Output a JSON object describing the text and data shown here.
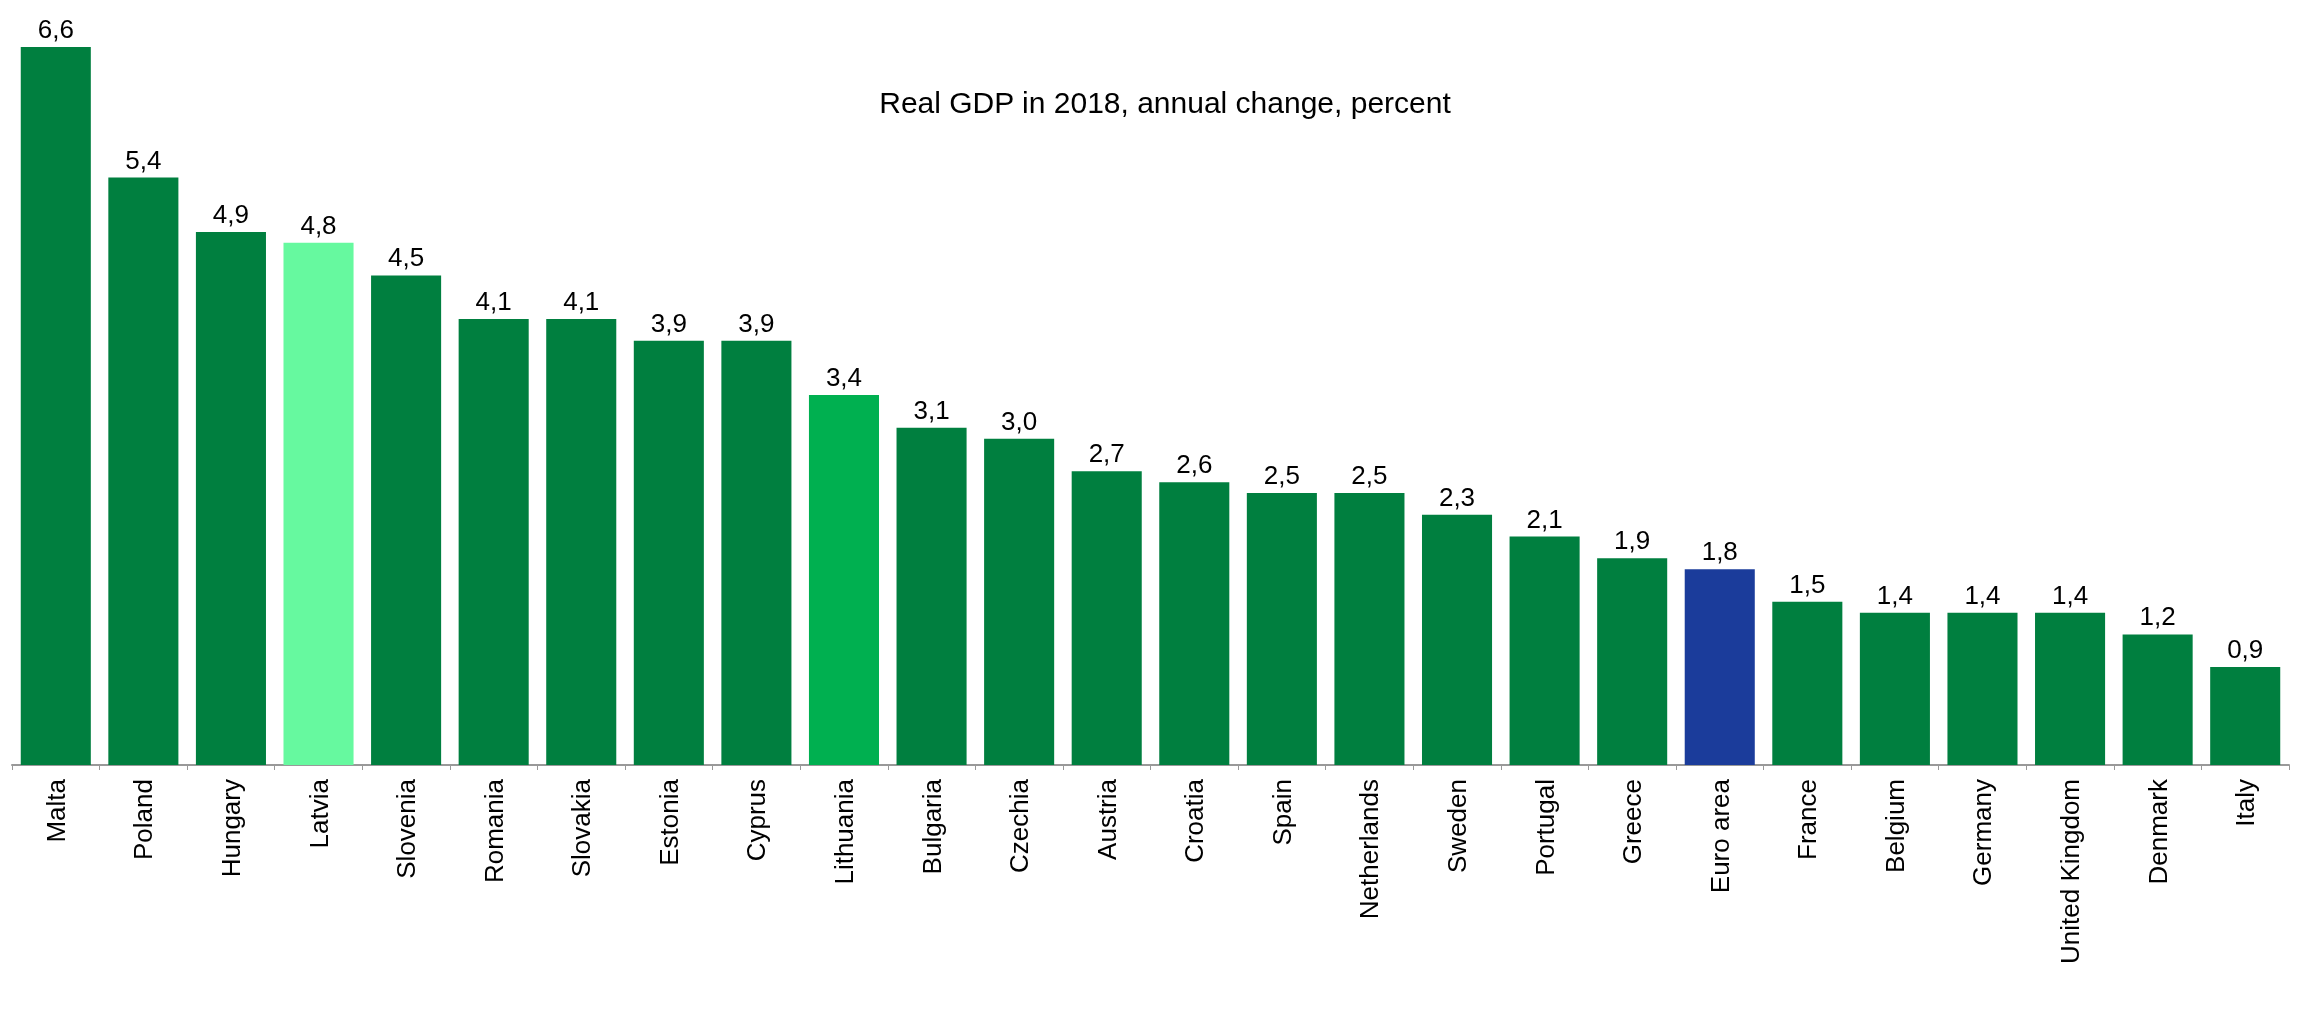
{
  "chart_data": {
    "type": "bar",
    "title": "Real GDP in 2018, annual change, percent",
    "categories": [
      "Malta",
      "Poland",
      "Hungary",
      "Latvia",
      "Slovenia",
      "Romania",
      "Slovakia",
      "Estonia",
      "Cyprus",
      "Lithuania",
      "Bulgaria",
      "Czechia",
      "Austria",
      "Croatia",
      "Spain",
      "Netherlands",
      "Sweden",
      "Portugal",
      "Greece",
      "Euro area",
      "France",
      "Belgium",
      "Germany",
      "United Kingdom",
      "Denmark",
      "Italy"
    ],
    "values": [
      6.6,
      5.4,
      4.9,
      4.8,
      4.5,
      4.1,
      4.1,
      3.9,
      3.9,
      3.4,
      3.1,
      3.0,
      2.7,
      2.6,
      2.5,
      2.5,
      2.3,
      2.1,
      1.9,
      1.8,
      1.5,
      1.4,
      1.4,
      1.4,
      1.2,
      0.9
    ],
    "value_labels": [
      "6,6",
      "5,4",
      "4,9",
      "4,8",
      "4,5",
      "4,1",
      "4,1",
      "3,9",
      "3,9",
      "3,4",
      "3,1",
      "3,0",
      "2,7",
      "2,6",
      "2,5",
      "2,5",
      "2,3",
      "2,1",
      "1,9",
      "1,8",
      "1,5",
      "1,4",
      "1,4",
      "1,4",
      "1,2",
      "0,9"
    ],
    "colors": [
      "#007f3f",
      "#007f3f",
      "#007f3f",
      "#66f99f",
      "#007f3f",
      "#007f3f",
      "#007f3f",
      "#007f3f",
      "#007f3f",
      "#00b050",
      "#007f3f",
      "#007f3f",
      "#007f3f",
      "#007f3f",
      "#007f3f",
      "#007f3f",
      "#007f3f",
      "#007f3f",
      "#007f3f",
      "#1b3c9b",
      "#007f3f",
      "#007f3f",
      "#007f3f",
      "#007f3f",
      "#007f3f",
      "#007f3f"
    ],
    "grid": false
  }
}
